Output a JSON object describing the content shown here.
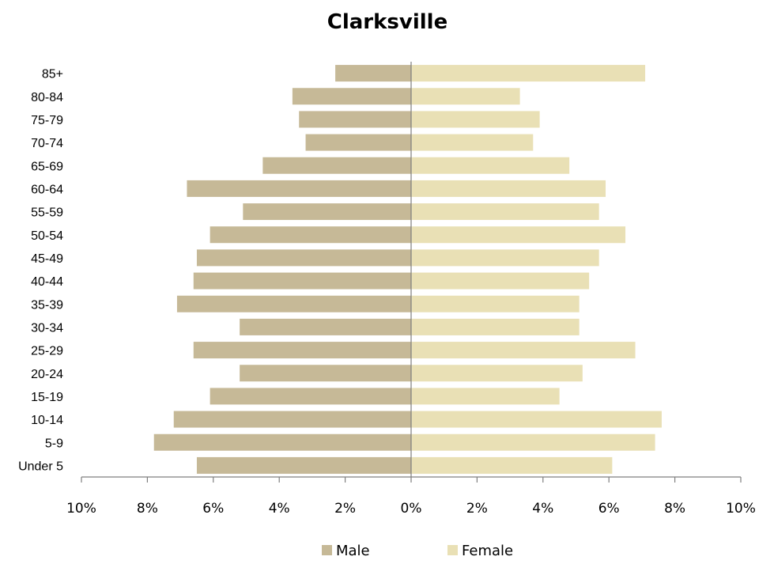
{
  "chart_data": {
    "type": "bar",
    "orientation": "horizontal",
    "layout": "population-pyramid",
    "title": "Clarksville",
    "categories": [
      "Under 5",
      "5-9",
      "10-14",
      "15-19",
      "20-24",
      "25-29",
      "30-34",
      "35-39",
      "40-44",
      "45-49",
      "50-54",
      "55-59",
      "60-64",
      "65-69",
      "70-74",
      "75-79",
      "80-84",
      "85+"
    ],
    "series": [
      {
        "name": "Male",
        "color": "#c6b997",
        "side": "left",
        "values": [
          6.5,
          7.8,
          7.2,
          6.1,
          5.2,
          6.6,
          5.2,
          7.1,
          6.6,
          6.5,
          6.1,
          5.1,
          6.8,
          4.5,
          3.2,
          3.4,
          3.6,
          2.3
        ]
      },
      {
        "name": "Female",
        "color": "#e9e0b5",
        "side": "right",
        "values": [
          6.1,
          7.4,
          7.6,
          4.5,
          5.2,
          6.8,
          5.1,
          5.1,
          5.4,
          5.7,
          6.5,
          5.7,
          5.9,
          4.8,
          3.7,
          3.9,
          3.3,
          7.1
        ]
      }
    ],
    "xlim": [
      -10,
      10
    ],
    "x_ticks": [
      "10%",
      "8%",
      "6%",
      "4%",
      "2%",
      "0%",
      "2%",
      "4%",
      "6%",
      "8%",
      "10%"
    ],
    "xlabel": "",
    "ylabel": "",
    "grid": false,
    "legend_position": "bottom"
  }
}
